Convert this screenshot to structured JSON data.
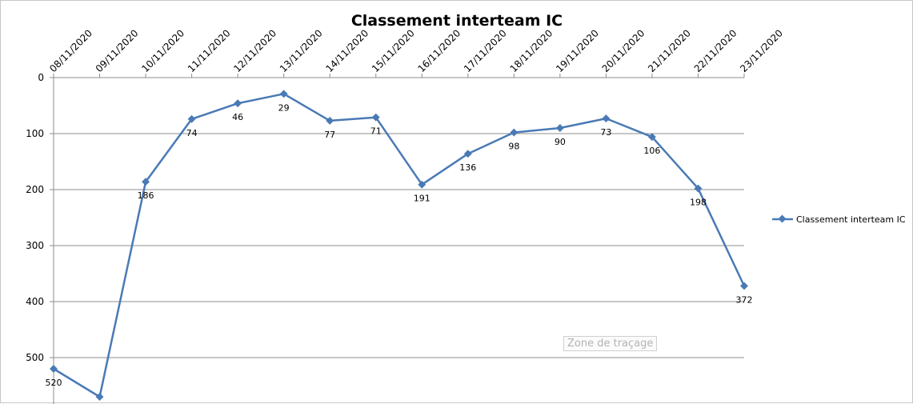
{
  "chart_data": {
    "type": "line",
    "title": "Classement interteam IC",
    "categories": [
      "08/11/2020",
      "09/11/2020",
      "10/11/2020",
      "11/11/2020",
      "12/11/2020",
      "13/11/2020",
      "14/11/2020",
      "15/11/2020",
      "16/11/2020",
      "17/11/2020",
      "18/11/2020",
      "19/11/2020",
      "20/11/2020",
      "21/11/2020",
      "22/11/2020",
      "23/11/2020"
    ],
    "series": [
      {
        "name": "Classement interteam IC",
        "values": [
          520,
          570,
          186,
          74,
          46,
          29,
          77,
          71,
          191,
          136,
          98,
          90,
          73,
          106,
          198,
          372
        ]
      }
    ],
    "y_ticks": [
      "0",
      "100",
      "200",
      "300",
      "400",
      "500"
    ],
    "ylim": [
      0,
      570
    ],
    "y_reversed": true,
    "x_axis_position": "top",
    "grid": true,
    "legend_position": "right",
    "series_color": "#4a7ab5"
  },
  "tooltip_text": "Zone de traçage"
}
